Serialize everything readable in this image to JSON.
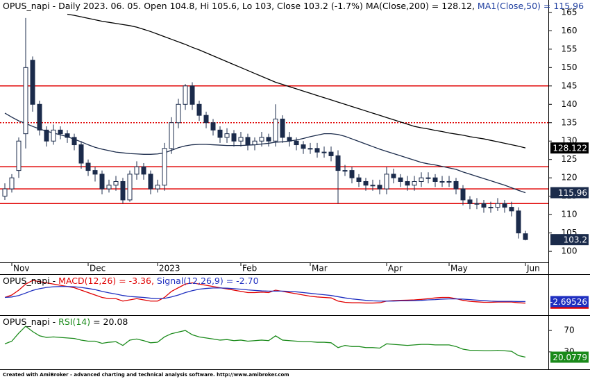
{
  "chart_data": [
    {
      "type": "candlestick",
      "title": [
        {
          "text": "OPUS_napi - Daily 2023. 06. 05. Open 104.8, Hi 105.6, Lo 103, Close 103.2 (-1.7%) ",
          "color": "#000000"
        },
        {
          "text": "MA(Close,200) = 128.12, ",
          "color": "#000000"
        },
        {
          "text": "MA1(Close,50) = 115.96",
          "color": "#1f3fa0"
        }
      ],
      "categories": [
        null,
        "Nov",
        null,
        null,
        null,
        null,
        null,
        null,
        null,
        null,
        null,
        null,
        "Dec",
        null,
        null,
        null,
        null,
        null,
        null,
        null,
        null,
        null,
        "2023",
        null,
        null,
        null,
        null,
        null,
        null,
        null,
        null,
        null,
        null,
        null,
        "Feb",
        null,
        null,
        null,
        null,
        null,
        null,
        null,
        null,
        null,
        "Mar",
        null,
        null,
        null,
        null,
        null,
        null,
        null,
        null,
        null,
        null,
        "Apr",
        null,
        null,
        null,
        null,
        null,
        null,
        null,
        null,
        "May",
        null,
        null,
        null,
        null,
        null,
        null,
        null,
        null,
        null,
        null,
        "Jun"
      ],
      "open": [
        115,
        117,
        122,
        132,
        152,
        140,
        133,
        130,
        133,
        132,
        131,
        129,
        124,
        122,
        121,
        117,
        118,
        119,
        114,
        121,
        123,
        121,
        117,
        118,
        128,
        135,
        140,
        145,
        140,
        137,
        135,
        133,
        131,
        132,
        130,
        131,
        129,
        130,
        131,
        130,
        136,
        131,
        130,
        129,
        128,
        128,
        127,
        127,
        126,
        122,
        122,
        120,
        119,
        118,
        118,
        117,
        121,
        120,
        119,
        118,
        119,
        120,
        120,
        119,
        119,
        119,
        117,
        114,
        113,
        113,
        112,
        112,
        113,
        112,
        111,
        104.8
      ],
      "high": [
        118.5,
        121,
        131,
        163.5,
        153,
        141,
        134,
        134.5,
        134,
        133,
        132,
        130,
        125,
        123,
        122,
        119.5,
        120.5,
        120,
        122,
        124.5,
        124,
        122,
        119.5,
        129.5,
        136.5,
        141.5,
        145.5,
        146,
        141,
        138,
        136,
        134,
        133.5,
        133,
        132.5,
        132,
        131,
        132.5,
        132,
        140,
        137,
        132.5,
        131,
        130,
        129.5,
        129.5,
        128.5,
        128.5,
        127.5,
        123.5,
        123,
        121,
        120,
        119.5,
        119.5,
        123,
        122.5,
        121,
        120.5,
        120.5,
        121.5,
        121.5,
        121,
        120.5,
        120.5,
        120,
        118,
        115,
        114.5,
        114,
        113.5,
        114.5,
        114,
        113.5,
        112,
        105.6
      ],
      "low": [
        114,
        116,
        120,
        128,
        138,
        131.5,
        128.5,
        129,
        130.5,
        129.5,
        127.5,
        122.5,
        120.5,
        119,
        115.5,
        116,
        116.5,
        113,
        113.5,
        119.5,
        119.5,
        115.5,
        116,
        116.5,
        126.5,
        133.5,
        138.5,
        138.5,
        135.5,
        133.5,
        131.5,
        129.5,
        129.5,
        128.5,
        128.5,
        127.5,
        127.5,
        128.5,
        128.5,
        128.5,
        129.5,
        128.5,
        127.5,
        126.5,
        126.5,
        125.5,
        125.5,
        124.5,
        113,
        120.5,
        118.5,
        117.5,
        116.5,
        116.5,
        115.5,
        115.5,
        118.5,
        117.5,
        116.5,
        116.5,
        117.5,
        118.5,
        117.5,
        117.5,
        117.5,
        115.5,
        112.5,
        111.5,
        111.5,
        110.5,
        110.5,
        111,
        110.5,
        109.5,
        103.5,
        103
      ],
      "close": [
        117,
        120,
        130,
        150,
        140,
        133,
        130,
        133,
        132,
        131,
        129,
        124,
        122,
        121,
        117,
        118,
        119,
        114,
        121,
        123,
        121,
        117,
        118,
        128,
        135,
        140,
        145,
        140,
        137,
        135,
        133,
        131,
        132,
        130,
        131,
        129,
        130,
        131,
        130,
        136,
        131,
        130,
        129,
        128,
        128,
        127,
        127,
        126,
        122,
        122,
        120,
        119,
        118,
        118,
        117,
        121,
        120,
        119,
        118,
        119,
        120,
        120,
        119,
        119,
        119,
        117,
        114,
        113,
        113,
        112,
        112,
        113,
        112,
        111,
        105,
        103.2
      ],
      "candle_color": "#1b2b4b",
      "last_tag_color": "#1b2b4b",
      "series": [
        {
          "color": "#000000",
          "values": [
            null,
            null,
            null,
            null,
            null,
            null,
            null,
            null,
            null,
            164.5,
            164.2,
            163.8,
            163.4,
            163,
            162.6,
            162.3,
            162,
            161.7,
            161.4,
            161,
            160.4,
            159.8,
            159.1,
            158.4,
            157.7,
            157,
            156.3,
            155.5,
            154.8,
            154,
            153.2,
            152.4,
            151.6,
            150.8,
            150,
            149.2,
            148.4,
            147.6,
            146.8,
            146,
            145.4,
            144.8,
            144.2,
            143.6,
            143,
            142.4,
            141.8,
            141.2,
            140.6,
            140,
            139.4,
            138.8,
            138.2,
            137.6,
            137,
            136.4,
            135.8,
            135.2,
            134.6,
            134,
            133.6,
            133.3,
            132.9,
            132.6,
            132.2,
            131.9,
            131.6,
            131.2,
            130.9,
            130.6,
            130.2,
            129.8,
            129.4,
            129,
            128.6,
            128.122
          ]
        },
        {
          "color": "#1b2b4b",
          "values": [
            137.6,
            136.5,
            135.5,
            134.8,
            134,
            133.3,
            132.7,
            132.2,
            131.7,
            131.2,
            130.5,
            129.8,
            129,
            128.3,
            127.8,
            127.4,
            127,
            126.8,
            126.6,
            126.5,
            126.4,
            126.4,
            126.5,
            126.8,
            127.5,
            128.2,
            128.7,
            129,
            129.1,
            129.1,
            129,
            128.9,
            128.8,
            128.8,
            128.8,
            128.9,
            129,
            129.2,
            129.4,
            129.7,
            129.8,
            130,
            130.3,
            130.7,
            131.2,
            131.6,
            132,
            132,
            131.8,
            131.3,
            130.6,
            129.9,
            129.2,
            128.5,
            127.8,
            127.2,
            126.6,
            126,
            125.4,
            124.8,
            124.2,
            123.8,
            123.5,
            123.1,
            122.7,
            122.3,
            121.6,
            121,
            120.4,
            119.8,
            119.2,
            118.6,
            118,
            117.3,
            116.6,
            115.96
          ]
        }
      ],
      "hlines": [
        {
          "value": 145,
          "style": "solid"
        },
        {
          "value": 135,
          "style": "dotted"
        },
        {
          "value": 123,
          "style": "solid"
        },
        {
          "value": 117,
          "style": "solid"
        },
        {
          "value": 113,
          "style": "solid"
        }
      ],
      "hline_color": "#e00000",
      "ylim": [
        97,
        168
      ],
      "yticks": [
        100,
        105,
        110,
        115,
        120,
        125,
        130,
        135,
        140,
        145,
        150,
        155,
        160,
        165
      ]
    },
    {
      "type": "line",
      "title": [
        {
          "text": "OPUS_napi - ",
          "color": "#000000"
        },
        {
          "text": "MACD(12,26) = -3.36, ",
          "color": "#e00000"
        },
        {
          "text": "Signal(12,26,9) = -2.70",
          "color": "#1f2fc0"
        }
      ],
      "series": [
        {
          "color": "#e00000",
          "values": [
            -1,
            0,
            2,
            4.5,
            6,
            5.5,
            5,
            4.5,
            4,
            3.5,
            3,
            2,
            1,
            0,
            -1,
            -1.5,
            -1.5,
            -2.5,
            -2,
            -1.5,
            -2,
            -2.5,
            -2.5,
            -1,
            1.5,
            3,
            4.5,
            5,
            4.5,
            4,
            3.5,
            3,
            2.5,
            2,
            1.5,
            1,
            1,
            1.2,
            1,
            2,
            1.5,
            1,
            0.5,
            0,
            -0.5,
            -0.8,
            -1,
            -1.2,
            -2.5,
            -3,
            -3.2,
            -3.2,
            -3.3,
            -3.3,
            -3.2,
            -2.5,
            -2.3,
            -2.2,
            -2.1,
            -2,
            -1.8,
            -1.5,
            -1.2,
            -1,
            -1,
            -1.5,
            -2.2,
            -2.6,
            -2.8,
            -3,
            -3,
            -2.9,
            -2.9,
            -2.9,
            -3.2,
            -3.36096
          ]
        },
        {
          "color": "#1f2fc0",
          "values": [
            -1,
            -0.8,
            -0.2,
            0.8,
            1.9,
            2.6,
            3.1,
            3.4,
            3.5,
            3.5,
            3.4,
            3.1,
            2.7,
            2.2,
            1.5,
            0.9,
            0.4,
            -0.2,
            -0.6,
            -0.8,
            -1,
            -1.3,
            -1.5,
            -1.4,
            -0.8,
            0,
            1,
            1.8,
            2.4,
            2.7,
            2.9,
            2.9,
            2.8,
            2.6,
            2.4,
            2.1,
            1.9,
            1.7,
            1.6,
            1.6,
            1.6,
            1.5,
            1.3,
            1,
            0.7,
            0.4,
            0.1,
            -0.2,
            -0.7,
            -1.2,
            -1.6,
            -1.9,
            -2.2,
            -2.4,
            -2.5,
            -2.5,
            -2.5,
            -2.4,
            -2.4,
            -2.3,
            -2.2,
            -2,
            -1.9,
            -1.7,
            -1.6,
            -1.6,
            -1.7,
            -1.9,
            -2.1,
            -2.3,
            -2.5,
            -2.6,
            -2.6,
            -2.6,
            -2.7,
            -2.69526
          ]
        }
      ],
      "ylim": [
        -8,
        8
      ]
    },
    {
      "type": "line",
      "title": [
        {
          "text": "OPUS_napi - ",
          "color": "#000000"
        },
        {
          "text": "RSI(14)",
          "color": "#1a8a1a"
        },
        {
          "text": " = 20.08",
          "color": "#000000"
        }
      ],
      "series": [
        {
          "color": "#1a8a1a",
          "values": [
            45,
            50,
            65,
            78,
            68,
            60,
            57,
            58,
            57,
            56,
            55,
            52,
            50,
            50,
            46,
            48,
            49,
            42,
            52,
            54,
            51,
            47,
            48,
            58,
            64,
            67,
            70,
            62,
            58,
            56,
            54,
            52,
            53,
            51,
            52,
            50,
            51,
            52,
            51,
            60,
            52,
            51,
            50,
            49,
            49,
            48,
            48,
            47,
            38,
            42,
            40,
            40,
            38,
            38,
            37,
            45,
            44,
            43,
            42,
            43,
            44,
            44,
            43,
            43,
            43,
            40,
            35,
            33,
            33,
            32,
            32,
            33,
            32,
            31,
            23,
            20.0779
          ]
        }
      ],
      "ylim": [
        0,
        100
      ],
      "yticks": [
        30,
        70
      ]
    }
  ],
  "footer": "Created with AmiBroker - advanced charting and technical analysis software. http://www.amibroker.com"
}
